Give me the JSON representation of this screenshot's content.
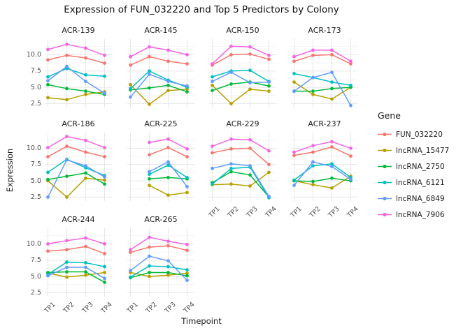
{
  "title": "Expression of FUN_032220 and Top 5 Predictors by Colony",
  "axes": {
    "x_label": "Timepoint",
    "y_label": "Expression",
    "y_ticks": [
      "10.0",
      "7.5",
      "5.0",
      "2.5"
    ],
    "y_tick_values": [
      10,
      7.5,
      5,
      2.5
    ],
    "x_ticks": [
      "TP1",
      "TP2",
      "TP3",
      "TP4"
    ]
  },
  "legend": {
    "title": "Gene",
    "position": "right",
    "entries": [
      {
        "label": "FUN_032220",
        "color": "#F8766D"
      },
      {
        "label": "lncRNA_15477",
        "color": "#B79F00"
      },
      {
        "label": "lncRNA_2750",
        "color": "#00BA38"
      },
      {
        "label": "lncRNA_6121",
        "color": "#00BFC4"
      },
      {
        "label": "lncRNA_6849",
        "color": "#619CFF"
      },
      {
        "label": "lncRNA_7906",
        "color": "#F564E3"
      }
    ]
  },
  "chart_data": {
    "type": "line",
    "x": [
      "TP1",
      "TP2",
      "TP3",
      "TP4"
    ],
    "ylim": [
      1.9,
      12.4
    ],
    "grid": true,
    "theme": {
      "panel_background": "#FFFFFF",
      "grid_major_color": "#E6E6E6",
      "grid_minor_color": "#F3F3F3",
      "minor_y": [
        3.75,
        6.25,
        8.75,
        11.25
      ]
    },
    "series_names": [
      "FUN_032220",
      "lncRNA_15477",
      "lncRNA_2750",
      "lncRNA_6121",
      "lncRNA_6849",
      "lncRNA_7906"
    ],
    "series_colors": [
      "#F8766D",
      "#B79F00",
      "#00BA38",
      "#00BFC4",
      "#619CFF",
      "#F564E3"
    ],
    "facets": [
      {
        "label": "ACR-139",
        "values": [
          [
            9.2,
            9.9,
            9.5,
            8.7
          ],
          [
            3.4,
            3.1,
            3.9,
            4.3
          ],
          [
            5.4,
            4.8,
            4.4,
            3.9
          ],
          [
            6.6,
            7.9,
            6.9,
            6.7
          ],
          [
            6.0,
            8.2,
            5.9,
            4.1
          ],
          [
            10.8,
            11.6,
            11.0,
            9.9
          ]
        ]
      },
      {
        "label": "ACR-145",
        "values": [
          [
            8.4,
            9.7,
            9.0,
            8.6
          ],
          [
            5.4,
            2.4,
            4.5,
            4.7
          ],
          [
            4.6,
            4.9,
            5.3,
            4.3
          ],
          [
            4.8,
            7.5,
            6.1,
            5.0
          ],
          [
            3.5,
            7.0,
            5.9,
            5.2
          ],
          [
            9.7,
            11.2,
            10.7,
            10.0
          ]
        ]
      },
      {
        "label": "ACR-150",
        "values": [
          [
            8.4,
            10.0,
            10.1,
            9.3
          ],
          [
            5.3,
            2.5,
            4.7,
            4.4
          ],
          [
            4.5,
            5.5,
            5.8,
            5.2
          ],
          [
            6.6,
            7.5,
            7.6,
            5.9
          ],
          [
            5.9,
            7.3,
            5.7,
            5.8
          ],
          [
            8.6,
            11.3,
            11.2,
            9.9
          ]
        ]
      },
      {
        "label": "ACR-173",
        "values": [
          [
            9.0,
            9.9,
            10.0,
            8.6
          ],
          [
            5.8,
            3.9,
            3.2,
            5.0
          ],
          [
            4.4,
            4.4,
            4.8,
            5.0
          ],
          [
            7.1,
            6.5,
            5.8,
            5.3
          ],
          [
            4.4,
            6.5,
            7.3,
            2.2
          ],
          [
            9.7,
            10.7,
            10.7,
            9.0
          ]
        ]
      },
      {
        "label": "ACR-186",
        "values": [
          [
            8.7,
            10.3,
            9.4,
            8.7
          ],
          [
            5.0,
            2.5,
            5.4,
            5.1
          ],
          [
            5.2,
            5.7,
            6.2,
            4.5
          ],
          [
            6.3,
            8.3,
            7.0,
            5.8
          ],
          [
            2.5,
            8.2,
            7.3,
            5.6
          ],
          [
            10.1,
            11.8,
            11.2,
            10.1
          ]
        ]
      },
      {
        "label": "ACR-225",
        "values": [
          [
            null,
            9.0,
            10.1,
            8.7
          ],
          [
            null,
            4.3,
            2.8,
            3.2
          ],
          [
            null,
            5.3,
            5.5,
            5.3
          ],
          [
            null,
            6.0,
            7.4,
            5.5
          ],
          [
            null,
            6.4,
            7.9,
            4.1
          ],
          [
            null,
            10.9,
            11.4,
            9.9
          ]
        ]
      },
      {
        "label": "ACR-229",
        "values": [
          [
            9.3,
            9.9,
            10.0,
            7.5
          ],
          [
            4.4,
            4.5,
            4.2,
            6.3
          ],
          [
            4.7,
            6.4,
            5.9,
            2.5
          ],
          [
            4.5,
            6.9,
            7.1,
            2.4
          ],
          [
            6.9,
            7.6,
            7.3,
            2.6
          ],
          [
            10.3,
            11.4,
            11.3,
            9.6
          ]
        ]
      },
      {
        "label": "ACR-237",
        "values": [
          [
            8.9,
            9.4,
            10.2,
            8.8
          ],
          [
            5.0,
            4.4,
            3.9,
            5.7
          ],
          [
            5.0,
            4.9,
            5.4,
            5.0
          ],
          [
            5.1,
            7.3,
            7.6,
            5.5
          ],
          [
            4.3,
            7.9,
            7.2,
            5.2
          ],
          [
            9.4,
            10.4,
            11.0,
            10.0
          ]
        ]
      },
      {
        "label": "ACR-244",
        "values": [
          [
            8.9,
            9.1,
            9.6,
            8.5
          ],
          [
            5.5,
            4.9,
            5.2,
            5.6
          ],
          [
            5.6,
            5.7,
            5.7,
            4.1
          ],
          [
            5.3,
            7.2,
            7.1,
            6.5
          ],
          [
            5.1,
            6.4,
            6.4,
            4.7
          ],
          [
            10.0,
            10.5,
            10.9,
            10.0
          ]
        ]
      },
      {
        "label": "ACR-265",
        "values": [
          [
            8.7,
            9.5,
            9.7,
            9.0
          ],
          [
            5.6,
            5.0,
            5.2,
            5.5
          ],
          [
            4.8,
            5.6,
            5.6,
            5.1
          ],
          [
            4.9,
            6.6,
            6.5,
            6.0
          ],
          [
            5.9,
            8.1,
            7.4,
            4.4
          ],
          [
            9.1,
            11.0,
            10.4,
            9.9
          ]
        ]
      }
    ]
  }
}
